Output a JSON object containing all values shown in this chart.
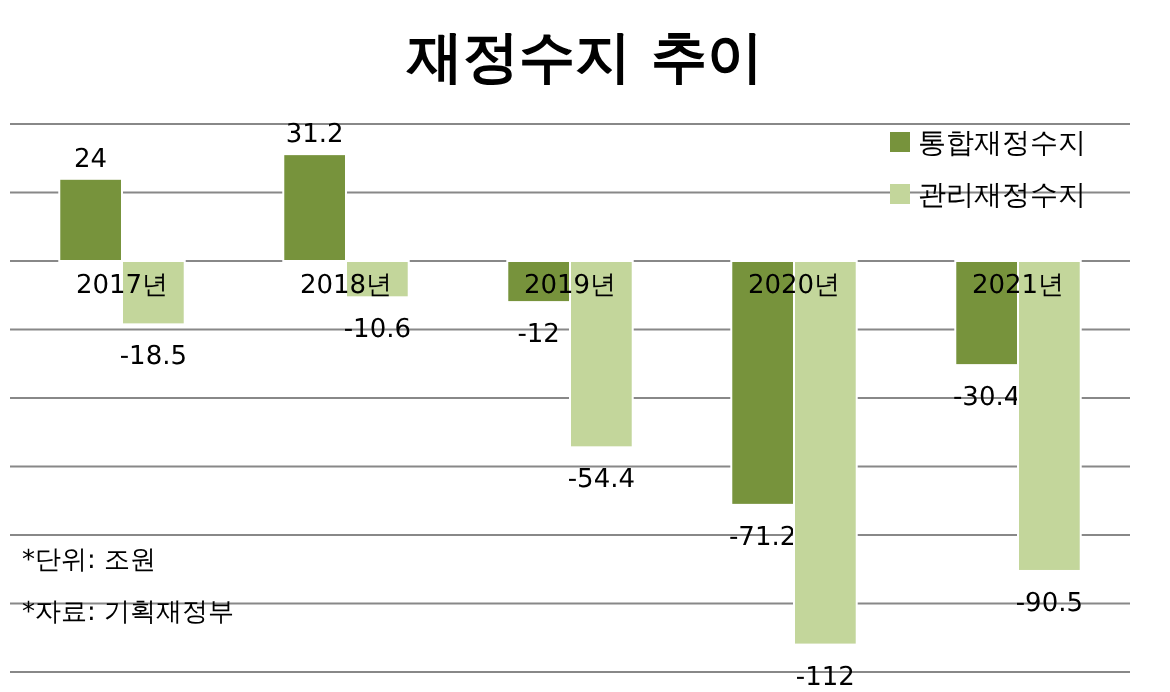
{
  "chart_data": {
    "type": "bar",
    "title": "재정수지 추이",
    "categories": [
      "2017년",
      "2018년",
      "2019년",
      "2020년",
      "2021년"
    ],
    "series": [
      {
        "name": "통합재정수지",
        "color": "#77933c",
        "values": [
          24,
          31.2,
          -12,
          -71.2,
          -30.4
        ]
      },
      {
        "name": "관리재정수지",
        "color": "#c3d69b",
        "values": [
          -18.5,
          -10.6,
          -54.4,
          -112,
          -90.5
        ]
      }
    ],
    "ylim": [
      -120,
      40
    ],
    "yticks": [
      {
        "value": -120,
        "label": null
      },
      {
        "value": -100,
        "label": null
      },
      {
        "value": -80,
        "label": null
      },
      {
        "value": -60,
        "label": null
      },
      {
        "value": -40,
        "label": null
      },
      {
        "value": -20,
        "label": null
      },
      {
        "value": 0,
        "label": null
      },
      {
        "value": 20,
        "label": null
      },
      {
        "value": 40,
        "label": null
      }
    ],
    "grid": "y",
    "legend": "top right",
    "data_labels": true,
    "annotations": [
      "*단위: 조원",
      "*자료: 기획재정부"
    ]
  }
}
